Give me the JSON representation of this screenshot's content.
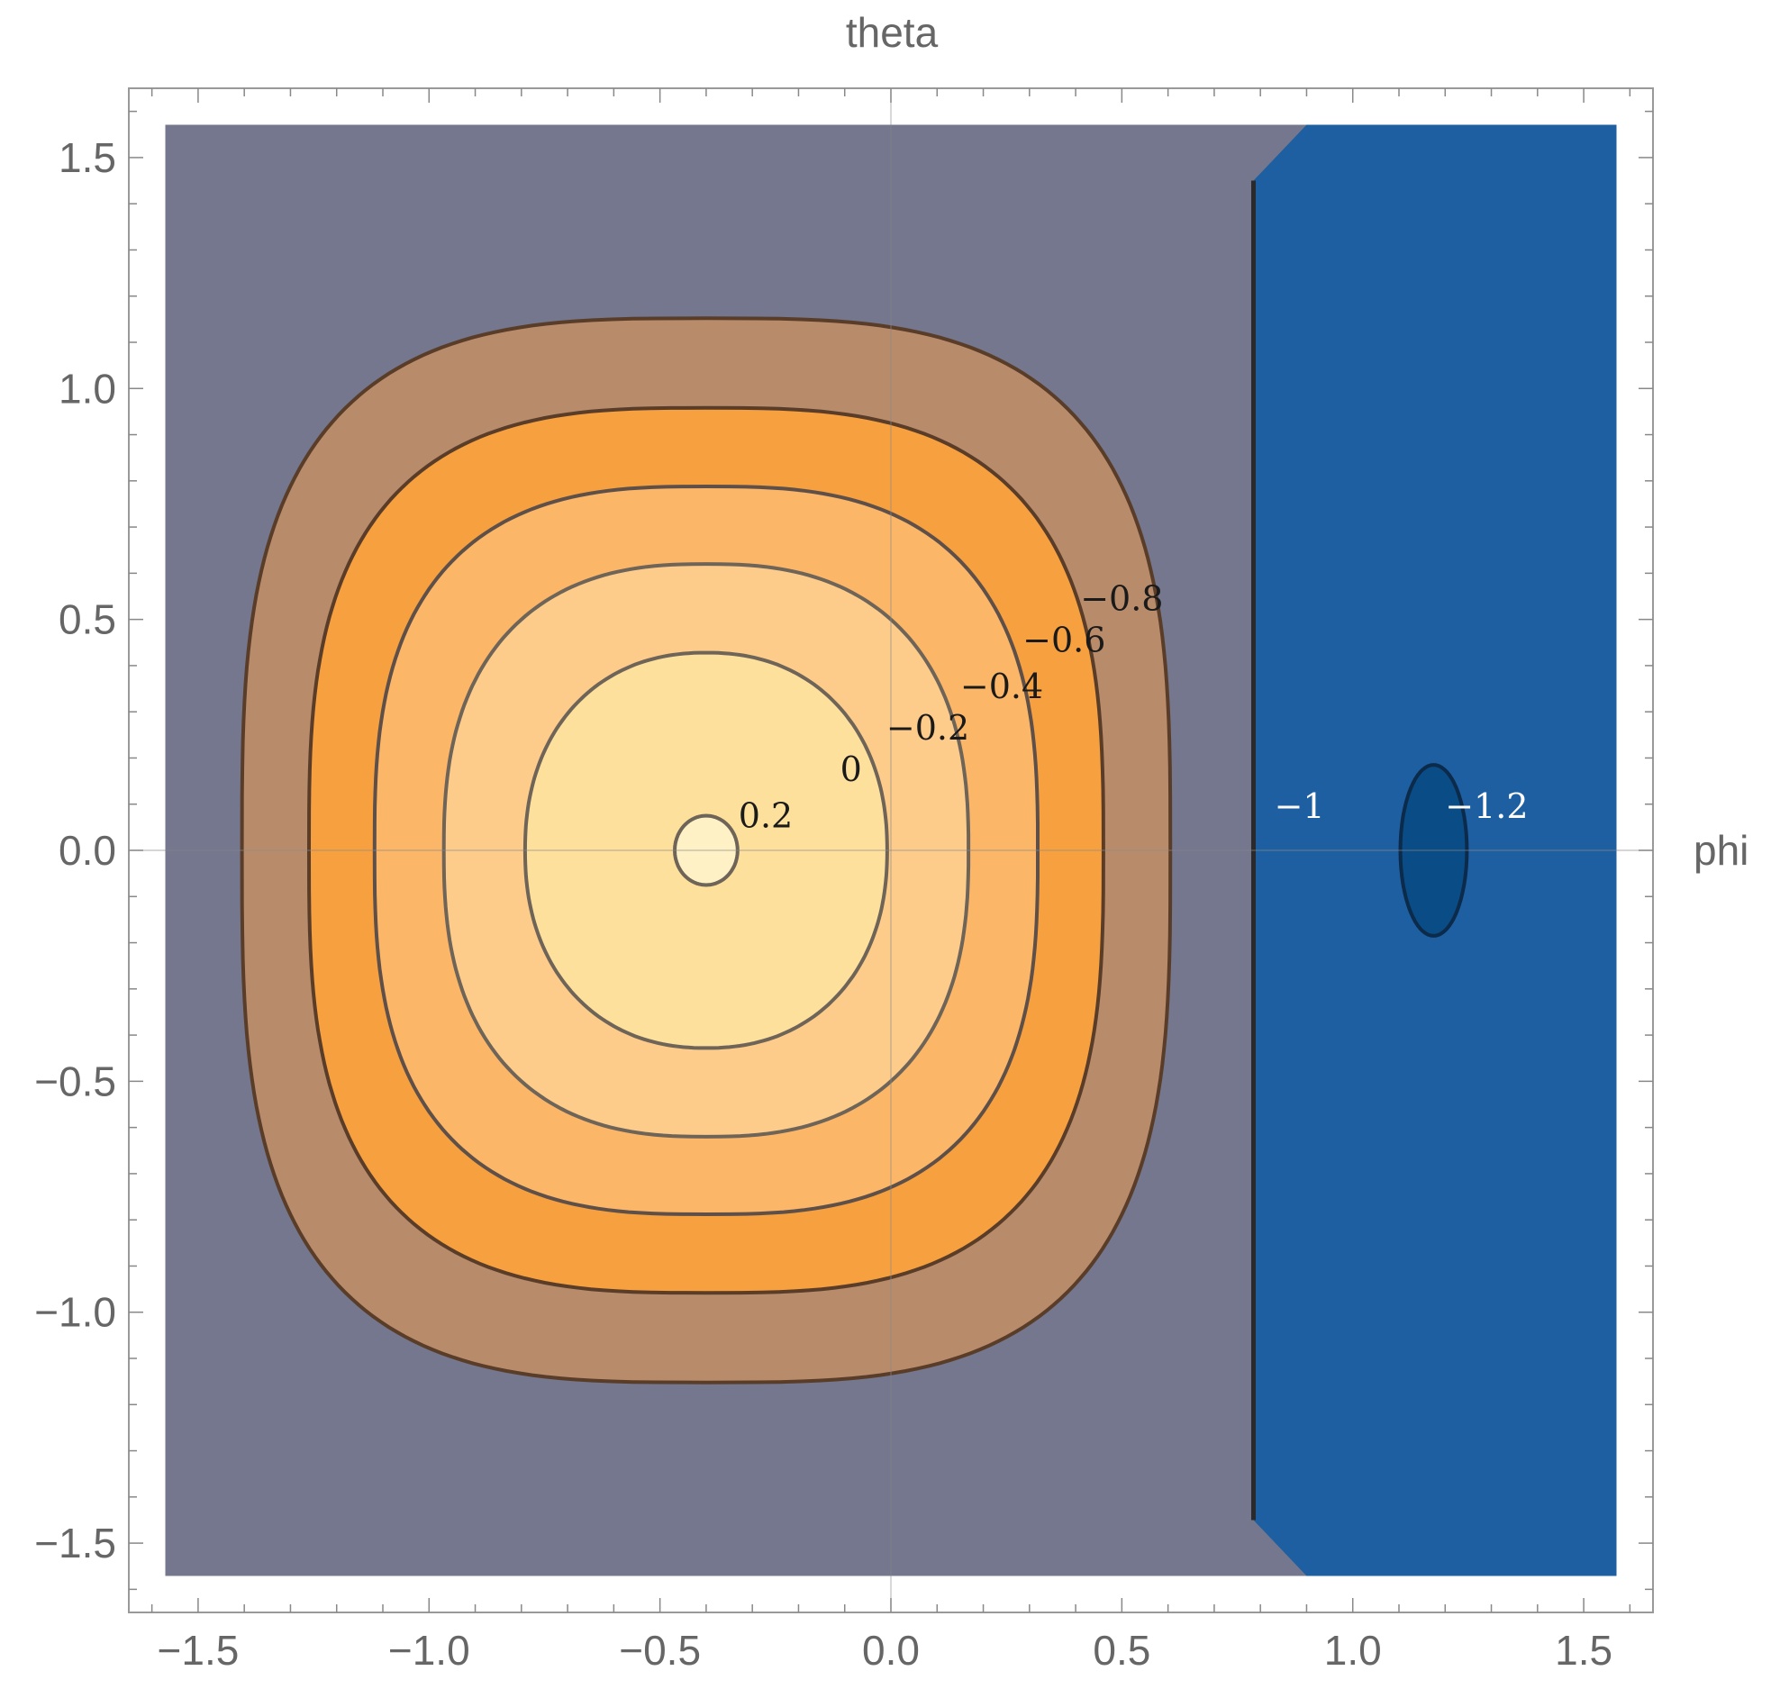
{
  "chart_data": {
    "type": "contour",
    "title": "",
    "xlabel": "theta",
    "ylabel": "phi",
    "xlim": [
      -1.571,
      1.571
    ],
    "ylim": [
      -1.571,
      1.571
    ],
    "frame_range": [
      -1.65,
      1.65
    ],
    "xticks": [
      {
        "value": -1.5,
        "label": "−1.5"
      },
      {
        "value": -1.0,
        "label": "−1.0"
      },
      {
        "value": -0.5,
        "label": "−0.5"
      },
      {
        "value": 0.0,
        "label": "0.0"
      },
      {
        "value": 0.5,
        "label": "0.5"
      },
      {
        "value": 1.0,
        "label": "1.0"
      },
      {
        "value": 1.5,
        "label": "1.5"
      }
    ],
    "yticks": [
      {
        "value": 1.5,
        "label": "1.5"
      },
      {
        "value": 1.0,
        "label": "1.0"
      },
      {
        "value": 0.5,
        "label": "0.5"
      },
      {
        "value": 0.0,
        "label": "0.0"
      },
      {
        "value": -0.5,
        "label": "−0.5"
      },
      {
        "value": -1.0,
        "label": "−1.0"
      },
      {
        "value": -1.5,
        "label": "−1.5"
      }
    ],
    "grid": true,
    "background_region": {
      "name": "below -0.8",
      "color": "#74778d"
    },
    "boundary": {
      "level": -1,
      "label": "−1",
      "x": 0.785,
      "y_range": [
        -1.45,
        1.45
      ],
      "fill_color": "#1e5fa1",
      "line_color": "#2a2a2a",
      "label_x": 0.83,
      "label_y": 0.07,
      "label_color": "#ffffff",
      "outline": [
        [
          0.785,
          1.45
        ],
        [
          0.9,
          1.571
        ],
        [
          1.571,
          1.571
        ],
        [
          1.571,
          -1.571
        ],
        [
          0.9,
          -1.571
        ],
        [
          0.785,
          -1.45
        ]
      ]
    },
    "contours": [
      {
        "level": -0.8,
        "label": "−0.8",
        "center": [
          -0.4,
          0.0
        ],
        "rx": 1.005,
        "ry": 1.152,
        "shape_exponent": 3.2,
        "fill": "#b88b6b",
        "stroke": "#5a3d28",
        "label_x": 0.41,
        "label_y": 0.52,
        "label_color": "#1a1a1a"
      },
      {
        "level": -0.6,
        "label": "−0.6",
        "center": [
          -0.4,
          0.0
        ],
        "rx": 0.86,
        "ry": 0.958,
        "shape_exponent": 3.0,
        "fill": "#f7a040",
        "stroke": "#5a3d28",
        "label_x": 0.285,
        "label_y": 0.43,
        "label_color": "#1a1a1a"
      },
      {
        "level": -0.4,
        "label": "−0.4",
        "center": [
          -0.4,
          0.0
        ],
        "rx": 0.718,
        "ry": 0.788,
        "shape_exponent": 2.8,
        "fill": "#fbb668",
        "stroke": "#5e5048",
        "label_x": 0.15,
        "label_y": 0.33,
        "label_color": "#1a1a1a"
      },
      {
        "level": -0.2,
        "label": "−0.2",
        "center": [
          -0.4,
          0.0
        ],
        "rx": 0.568,
        "ry": 0.62,
        "shape_exponent": 2.5,
        "fill": "#fdcc8a",
        "stroke": "#6e6458",
        "label_x": -0.01,
        "label_y": 0.24,
        "label_color": "#1a1a1a"
      },
      {
        "level": 0.0,
        "label": "0",
        "center": [
          -0.4,
          0.0
        ],
        "rx": 0.392,
        "ry": 0.428,
        "shape_exponent": 2.2,
        "fill": "#fee09d",
        "stroke": "#6e6458",
        "label_x": -0.11,
        "label_y": 0.15,
        "label_color": "#1a1a1a"
      },
      {
        "level": 0.2,
        "label": "0.2",
        "center": [
          -0.4,
          0.0
        ],
        "rx": 0.068,
        "ry": 0.075,
        "shape_exponent": 2.0,
        "fill": "#fff1c6",
        "stroke": "#6e6458",
        "label_x": -0.33,
        "label_y": 0.05,
        "label_color": "#1a1a1a"
      },
      {
        "level": -1.2,
        "label": "−1.2",
        "center": [
          1.175,
          0.0
        ],
        "rx": 0.072,
        "ry": 0.185,
        "shape_exponent": 2.0,
        "fill": "#0a4c86",
        "stroke": "#0c2a4a",
        "label_x": 1.2,
        "label_y": 0.07,
        "label_color": "#ffffff"
      }
    ]
  }
}
